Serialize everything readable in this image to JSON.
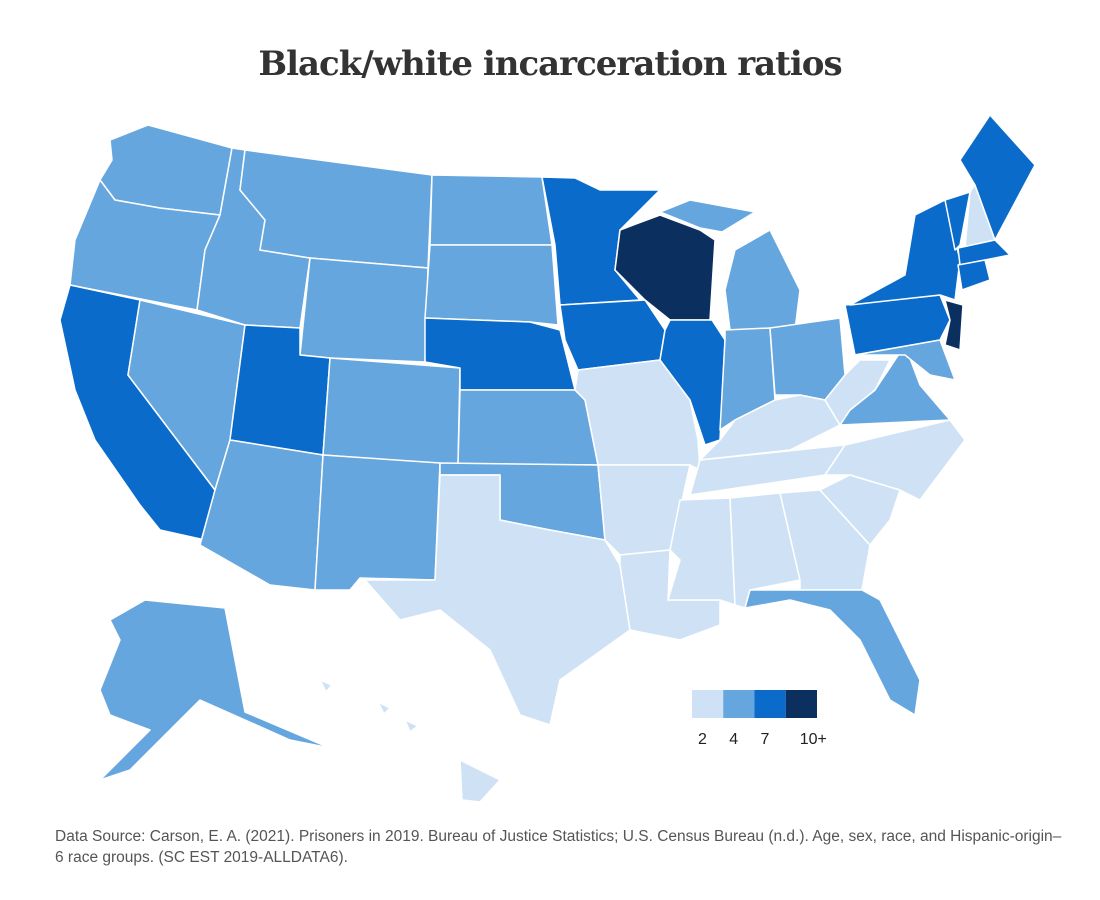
{
  "title": "Black/white incarceration ratios",
  "legend": {
    "labels": [
      "2",
      "4",
      "7",
      "10+"
    ],
    "colors": [
      "#cfe2f5",
      "#66a6de",
      "#0a6bcb",
      "#0b2f5e"
    ]
  },
  "map": {
    "state_colors": [
      "#66a6de",
      "#66a6de",
      "#0a6bcb",
      "#66a6de",
      "#66a6de",
      "#66a6de",
      "#66a6de",
      "#0a6bcb",
      "#66a6de",
      "#66a6de",
      "#66a6de",
      "#66a6de",
      "#66a6de",
      "#0a6bcb",
      "#66a6de",
      "#66a6de",
      "#cfe2f5",
      "#0a6bcb",
      "#0a6bcb",
      "#cfe2f5",
      "#cfe2f5",
      "#cfe2f5",
      "#0b2f5e",
      "#0a6bcb",
      "#66a6de",
      "#66a6de",
      "#66a6de",
      "#cfe2f5",
      "#cfe2f5",
      "#cfe2f5",
      "#cfe2f5",
      "#cfe2f5",
      "#66a6de",
      "#cfe2f5",
      "#cfe2f5",
      "#66a6de",
      "#cfe2f5",
      "#0a6bcb",
      "#0a6bcb",
      "#0b2f5e",
      "#66a6de",
      "#0a6bcb",
      "#cfe2f5",
      "#0a6bcb",
      "#0a6bcb",
      "#0a6bcb",
      "#66a6de",
      "#cfe2f5"
    ]
  },
  "source": "Data Source: Carson, E. A. (2021). Prisoners in 2019. Bureau of Justice Statistics; U.S. Census Bureau (n.d.). Age, sex, race, and Hispanic-origin–6 race groups. (SC EST 2019-ALLDATA6)."
}
